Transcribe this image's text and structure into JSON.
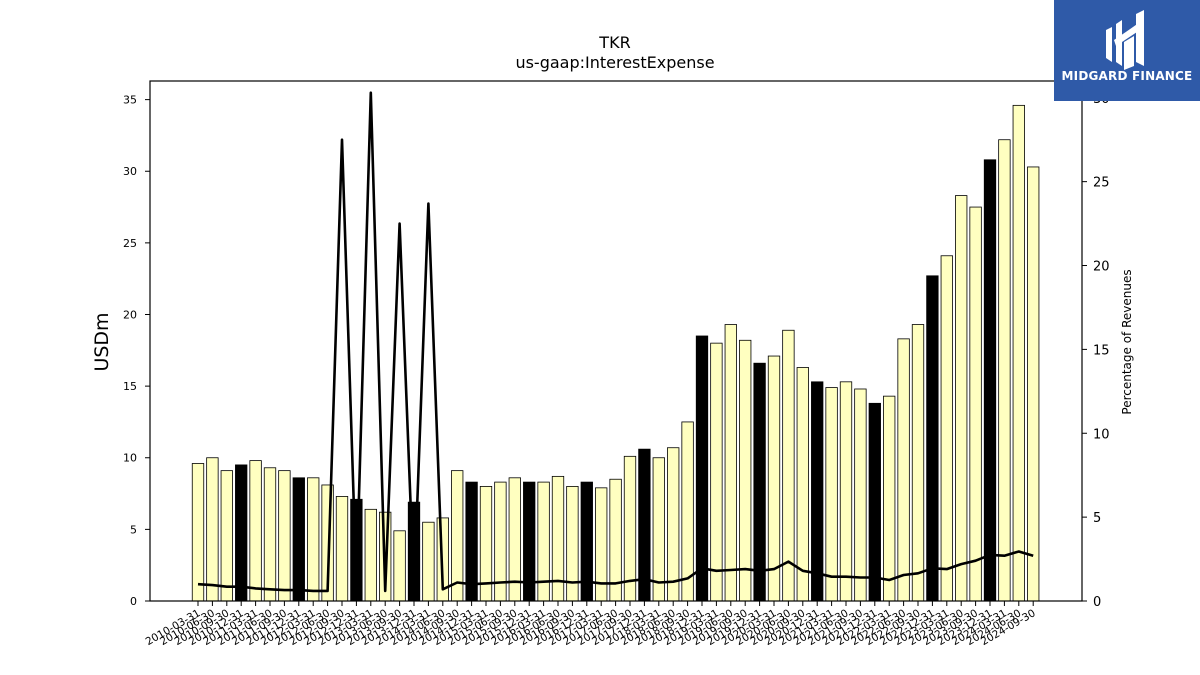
{
  "chart_data": {
    "type": "bar",
    "title": "TKR",
    "subtitle": "us-gaap:InterestExpense",
    "ylabel": "USDm",
    "y2label": "Percentage of Revenues",
    "ylim": [
      0,
      36.3
    ],
    "y2lim": [
      0,
      31.0
    ],
    "yticks": [
      0,
      5,
      10,
      15,
      20,
      25,
      30,
      35
    ],
    "y2ticks": [
      0,
      5,
      10,
      15,
      20,
      25,
      30
    ],
    "grid": false,
    "categories": [
      "2010-03-31",
      "2010-06-30",
      "2010-09-30",
      "2010-12-31",
      "2011-03-31",
      "2011-06-30",
      "2011-09-30",
      "2011-12-31",
      "2012-03-31",
      "2012-06-30",
      "2012-09-30",
      "2012-12-31",
      "2013-03-31",
      "2013-06-30",
      "2013-09-30",
      "2013-12-31",
      "2014-03-31",
      "2014-06-30",
      "2014-09-30",
      "2014-12-31",
      "2015-03-31",
      "2015-06-30",
      "2015-09-30",
      "2015-12-31",
      "2016-03-31",
      "2016-06-30",
      "2016-09-30",
      "2016-12-31",
      "2017-03-31",
      "2017-06-30",
      "2017-09-30",
      "2017-12-31",
      "2018-03-31",
      "2018-06-30",
      "2018-09-30",
      "2018-12-31",
      "2019-03-31",
      "2019-06-30",
      "2019-09-30",
      "2019-12-31",
      "2020-03-31",
      "2020-06-30",
      "2020-09-30",
      "2020-12-31",
      "2021-03-31",
      "2021-06-30",
      "2021-09-30",
      "2021-12-31",
      "2022-03-31",
      "2022-06-30",
      "2022-09-30",
      "2022-12-31",
      "2023-03-31",
      "2023-06-30",
      "2023-09-30",
      "2023-12-31",
      "2024-03-31",
      "2024-06-30",
      "2024-09-30"
    ],
    "series": [
      {
        "kind": "bar",
        "axis": "left",
        "values": [
          9.6,
          10.0,
          9.1,
          9.5,
          9.8,
          9.3,
          9.1,
          8.6,
          8.6,
          8.1,
          7.3,
          7.1,
          6.4,
          6.2,
          4.9,
          6.9,
          5.5,
          5.8,
          9.1,
          8.3,
          8.0,
          8.3,
          8.6,
          8.3,
          8.3,
          8.7,
          8.0,
          8.3,
          7.9,
          8.5,
          10.1,
          10.6,
          10.0,
          10.7,
          12.5,
          18.5,
          18.0,
          19.3,
          18.2,
          16.6,
          17.1,
          18.9,
          16.3,
          15.3,
          14.9,
          15.3,
          14.8,
          13.8,
          14.3,
          18.3,
          19.3,
          22.7,
          24.1,
          28.3,
          27.5,
          30.8,
          32.2,
          34.6,
          30.3
        ],
        "highlight": [
          false,
          false,
          false,
          true,
          false,
          false,
          false,
          true,
          false,
          false,
          false,
          true,
          false,
          false,
          false,
          true,
          false,
          false,
          false,
          true,
          false,
          false,
          false,
          true,
          false,
          false,
          false,
          true,
          false,
          false,
          false,
          true,
          false,
          false,
          false,
          true,
          false,
          false,
          false,
          true,
          false,
          false,
          false,
          true,
          false,
          false,
          false,
          true,
          false,
          false,
          false,
          true,
          false,
          false,
          false,
          true,
          false,
          false,
          false
        ],
        "fill": "#ffffc0",
        "highlight_fill": "#000000"
      },
      {
        "kind": "line",
        "axis": "right",
        "color": "#000000",
        "values": [
          1.0,
          0.95,
          0.85,
          0.85,
          0.75,
          0.7,
          0.65,
          0.65,
          0.6,
          0.6,
          27.5,
          1.0,
          30.3,
          0.6,
          22.5,
          0.6,
          23.7,
          0.7,
          1.1,
          1.0,
          1.05,
          1.1,
          1.15,
          1.1,
          1.15,
          1.2,
          1.1,
          1.15,
          1.05,
          1.05,
          1.2,
          1.3,
          1.1,
          1.15,
          1.35,
          1.95,
          1.8,
          1.85,
          1.9,
          1.8,
          1.9,
          2.35,
          1.8,
          1.65,
          1.45,
          1.45,
          1.4,
          1.4,
          1.25,
          1.55,
          1.65,
          1.95,
          1.9,
          2.2,
          2.4,
          2.75,
          2.7,
          2.95,
          2.7
        ]
      }
    ]
  },
  "logo": {
    "text": "MIDGARD FINANCE"
  }
}
